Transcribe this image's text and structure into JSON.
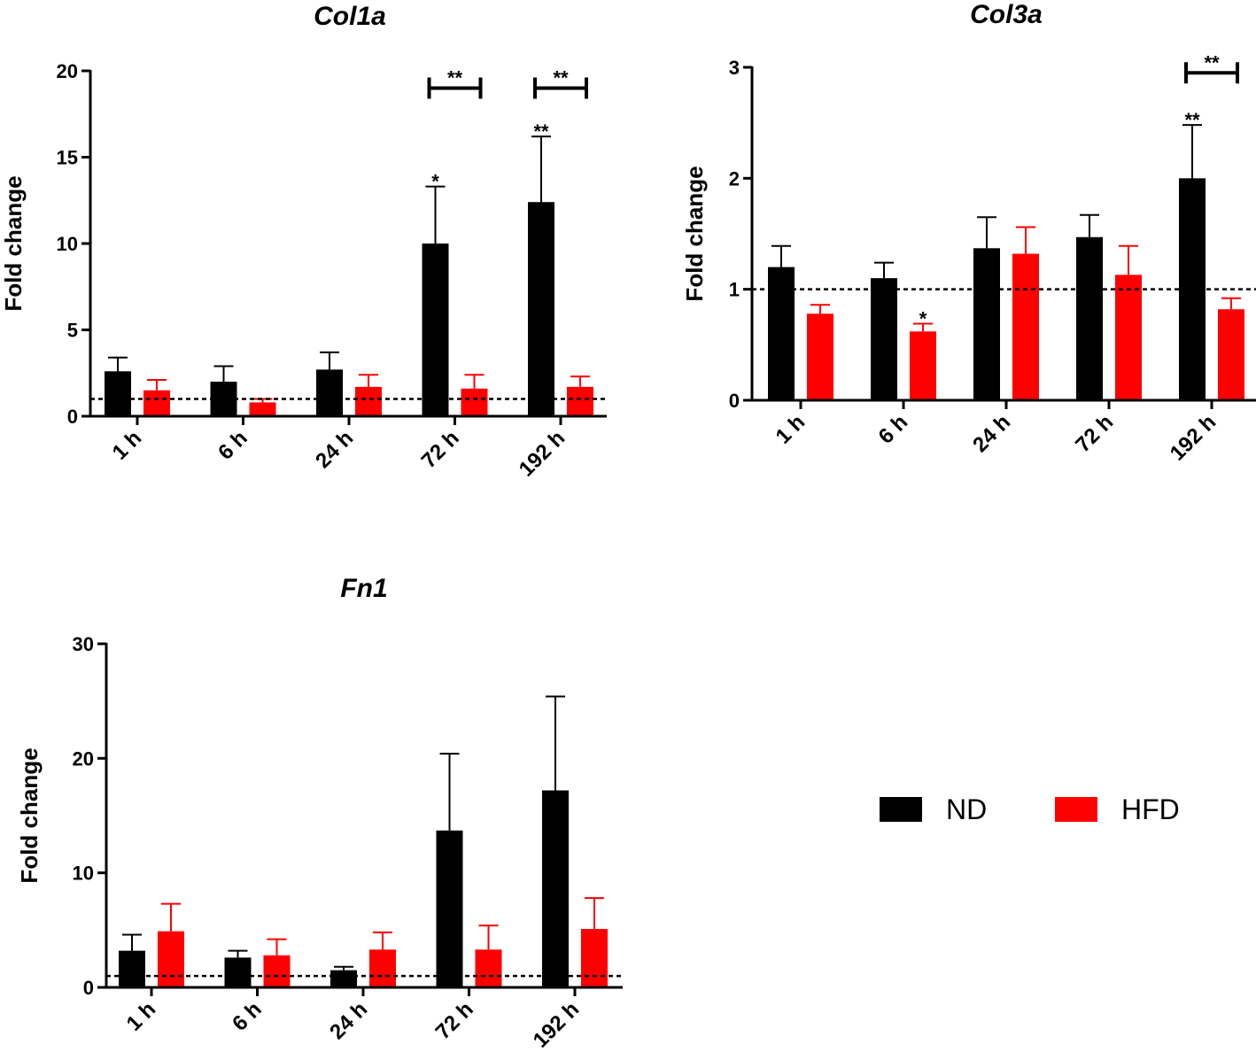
{
  "colors": {
    "ND": "#000000",
    "HFD": "#ff0000",
    "axis": "#000000"
  },
  "legend": {
    "items": [
      {
        "label": "ND",
        "color": "#000000"
      },
      {
        "label": "HFD",
        "color": "#ff0000"
      }
    ]
  },
  "chart_data": [
    {
      "type": "bar",
      "title": "Col1a",
      "xlabel": "",
      "ylabel": "Fold change",
      "ylim": [
        0,
        20
      ],
      "yticks": [
        0,
        5,
        10,
        15,
        20
      ],
      "ytick_labels": [
        "0",
        "5",
        "10",
        "15",
        "20"
      ],
      "categories": [
        "1 h",
        "6 h",
        "24 h",
        "72 h",
        "192 h"
      ],
      "reference_line": 1,
      "series": [
        {
          "name": "ND",
          "values": [
            2.6,
            2.0,
            2.7,
            10.0,
            12.4
          ],
          "errors": [
            0.8,
            0.9,
            1.0,
            3.3,
            3.8
          ]
        },
        {
          "name": "HFD",
          "values": [
            1.5,
            0.8,
            1.7,
            1.6,
            1.7
          ],
          "errors": [
            0.6,
            0.2,
            0.7,
            0.8,
            0.6
          ]
        }
      ],
      "annotations": [
        {
          "category": 3,
          "series": "ND",
          "text": "*"
        },
        {
          "category": 4,
          "series": "ND",
          "text": "**"
        }
      ],
      "brackets": [
        {
          "category": 3,
          "text": "**",
          "y": 19.0
        },
        {
          "category": 4,
          "text": "**",
          "y": 19.0
        }
      ]
    },
    {
      "type": "bar",
      "title": "Col3a",
      "xlabel": "",
      "ylabel": "Fold change",
      "ylim": [
        0,
        3
      ],
      "yticks": [
        0,
        1,
        2,
        3
      ],
      "ytick_labels": [
        "0",
        "1",
        "2",
        "3"
      ],
      "categories": [
        "1 h",
        "6 h",
        "24 h",
        "72 h",
        "192 h"
      ],
      "reference_line": 1,
      "series": [
        {
          "name": "ND",
          "values": [
            1.2,
            1.1,
            1.37,
            1.47,
            2.0
          ],
          "errors": [
            0.19,
            0.14,
            0.28,
            0.2,
            0.48
          ]
        },
        {
          "name": "HFD",
          "values": [
            0.78,
            0.62,
            1.32,
            1.13,
            0.82
          ],
          "errors": [
            0.08,
            0.07,
            0.24,
            0.26,
            0.1
          ]
        }
      ],
      "annotations": [
        {
          "category": 1,
          "series": "HFD",
          "text": "*"
        },
        {
          "category": 4,
          "series": "ND",
          "text": "**"
        }
      ],
      "brackets": [
        {
          "category": 4,
          "text": "**",
          "y": 2.95
        }
      ]
    },
    {
      "type": "bar",
      "title": "Fn1",
      "xlabel": "",
      "ylabel": "Fold change",
      "ylim": [
        0,
        30
      ],
      "yticks": [
        0,
        10,
        20,
        30
      ],
      "ytick_labels": [
        "0",
        "10",
        "20",
        "30"
      ],
      "categories": [
        "1 h",
        "6 h",
        "24 h",
        "72 h",
        "192 h"
      ],
      "reference_line": 1,
      "series": [
        {
          "name": "ND",
          "values": [
            3.2,
            2.6,
            1.5,
            13.7,
            17.2
          ],
          "errors": [
            1.4,
            0.6,
            0.3,
            6.7,
            8.2
          ]
        },
        {
          "name": "HFD",
          "values": [
            4.9,
            2.8,
            3.3,
            3.3,
            5.1
          ],
          "errors": [
            2.4,
            1.4,
            1.5,
            2.1,
            2.7
          ]
        }
      ],
      "annotations": [],
      "brackets": []
    }
  ]
}
